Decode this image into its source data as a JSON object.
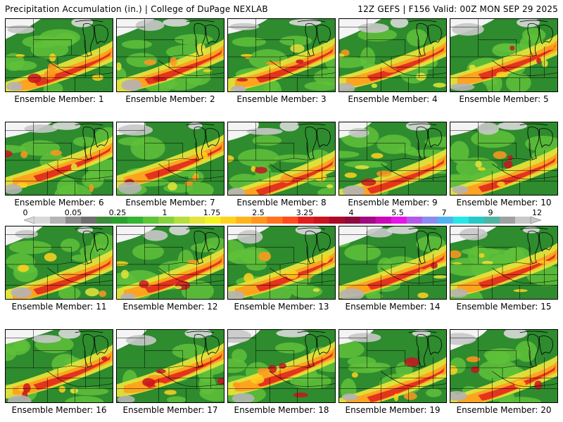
{
  "header": {
    "title": "Precipitation Accumulation (in.) | College of DuPage NEXLAB",
    "run_info": "12Z GEFS | F156 Valid: 00Z MON SEP 29 2025"
  },
  "member_prefix": "Ensemble Member:",
  "members": [
    "1",
    "2",
    "3",
    "4",
    "5",
    "6",
    "7",
    "8",
    "9",
    "10",
    "11",
    "12",
    "13",
    "14",
    "15",
    "16",
    "17",
    "18",
    "19",
    "20"
  ],
  "colorbar": {
    "labels": [
      "0",
      "0.05",
      "0.25",
      "1",
      "1.75",
      "2.5",
      "3.25",
      "4",
      "5.5",
      "7",
      "9",
      "12"
    ],
    "colors": [
      "#d9d9d9",
      "#b4b4b4",
      "#8c8c8c",
      "#6e6e6e",
      "#3c8c3c",
      "#2ca02c",
      "#33b533",
      "#5ec43a",
      "#86d23e",
      "#b5dd3f",
      "#e4e43c",
      "#f3f31f",
      "#ffd21e",
      "#ffb41e",
      "#ff961e",
      "#ff731e",
      "#ff4b1e",
      "#e11e1e",
      "#c8141e",
      "#aa0a28",
      "#8c0a3c",
      "#a00a82",
      "#c80ab4",
      "#e614e6",
      "#b45ae6",
      "#8c8cf0",
      "#50b4f0",
      "#28e6e6",
      "#28c8c8",
      "#50b4a0",
      "#a0a0a0",
      "#c8c8c8"
    ]
  }
}
